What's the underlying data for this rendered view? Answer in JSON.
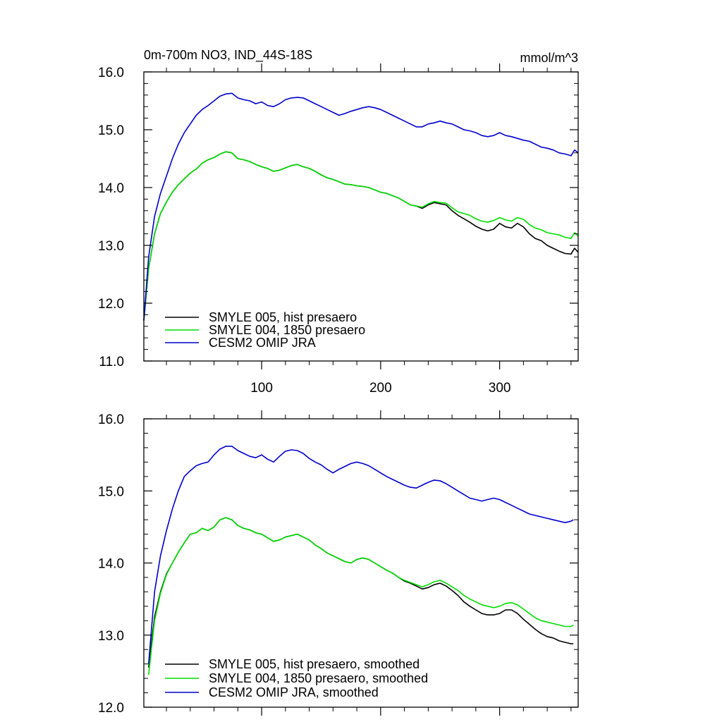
{
  "chart_data": [
    {
      "type": "line",
      "title": "0m-700m NO3, IND_44S-18S",
      "units": "mmol/m^3",
      "xlim": [
        1,
        366
      ],
      "ylim": [
        11.0,
        16.0
      ],
      "x_ticks": [
        100,
        200,
        300
      ],
      "x_tick_labels": [
        "100",
        "200",
        "300"
      ],
      "y_ticks": [
        11.0,
        12.0,
        13.0,
        14.0,
        15.0,
        16.0
      ],
      "y_tick_labels": [
        "11.0",
        "12.0",
        "13.0",
        "14.0",
        "15.0",
        "16.0"
      ],
      "legend_placement": "lower-left",
      "series": [
        {
          "name": "SMYLE 005, hist presaero",
          "color": "#000000",
          "x": [
            1,
            5,
            10,
            15,
            20,
            25,
            30,
            35,
            40,
            45,
            50,
            55,
            60,
            65,
            70,
            75,
            80,
            85,
            90,
            95,
            100,
            105,
            110,
            115,
            120,
            125,
            130,
            135,
            140,
            145,
            150,
            155,
            160,
            165,
            170,
            175,
            180,
            185,
            190,
            195,
            200,
            205,
            210,
            215,
            220,
            225,
            230,
            235,
            240,
            245,
            250,
            255,
            260,
            265,
            270,
            275,
            280,
            285,
            290,
            295,
            300,
            305,
            310,
            315,
            320,
            325,
            330,
            335,
            340,
            345,
            350,
            355,
            360,
            363,
            366
          ],
          "values": [
            11.7,
            12.6,
            13.2,
            13.55,
            13.75,
            13.92,
            14.05,
            14.15,
            14.25,
            14.32,
            14.42,
            14.48,
            14.52,
            14.58,
            14.62,
            14.6,
            14.5,
            14.48,
            14.45,
            14.4,
            14.36,
            14.33,
            14.28,
            14.3,
            14.34,
            14.38,
            14.4,
            14.36,
            14.33,
            14.28,
            14.22,
            14.17,
            14.14,
            14.1,
            14.06,
            14.05,
            14.03,
            14.02,
            14.0,
            13.96,
            13.92,
            13.9,
            13.86,
            13.82,
            13.76,
            13.7,
            13.68,
            13.64,
            13.7,
            13.74,
            13.72,
            13.7,
            13.6,
            13.52,
            13.46,
            13.4,
            13.33,
            13.28,
            13.25,
            13.28,
            13.38,
            13.32,
            13.3,
            13.38,
            13.32,
            13.2,
            13.12,
            13.08,
            13.0,
            12.95,
            12.9,
            12.86,
            12.85,
            12.95,
            12.88
          ]
        },
        {
          "name": "SMYLE 004, 1850 presaero",
          "color": "#00dd00",
          "x": [
            1,
            5,
            10,
            15,
            20,
            25,
            30,
            35,
            40,
            45,
            50,
            55,
            60,
            65,
            70,
            75,
            80,
            85,
            90,
            95,
            100,
            105,
            110,
            115,
            120,
            125,
            130,
            135,
            140,
            145,
            150,
            155,
            160,
            165,
            170,
            175,
            180,
            185,
            190,
            195,
            200,
            205,
            210,
            215,
            220,
            225,
            230,
            235,
            240,
            245,
            250,
            255,
            260,
            265,
            270,
            275,
            280,
            285,
            290,
            295,
            300,
            305,
            310,
            315,
            320,
            325,
            330,
            335,
            340,
            345,
            350,
            355,
            360,
            363,
            366
          ],
          "values": [
            11.7,
            12.6,
            13.2,
            13.55,
            13.75,
            13.92,
            14.05,
            14.15,
            14.25,
            14.32,
            14.42,
            14.48,
            14.52,
            14.58,
            14.62,
            14.6,
            14.5,
            14.48,
            14.45,
            14.4,
            14.36,
            14.33,
            14.28,
            14.3,
            14.34,
            14.38,
            14.4,
            14.36,
            14.33,
            14.28,
            14.22,
            14.17,
            14.14,
            14.1,
            14.06,
            14.05,
            14.03,
            14.02,
            14.0,
            13.96,
            13.92,
            13.9,
            13.86,
            13.82,
            13.76,
            13.7,
            13.68,
            13.66,
            13.72,
            13.76,
            13.74,
            13.73,
            13.65,
            13.58,
            13.55,
            13.52,
            13.46,
            13.42,
            13.4,
            13.43,
            13.48,
            13.44,
            13.42,
            13.48,
            13.45,
            13.36,
            13.3,
            13.27,
            13.22,
            13.2,
            13.18,
            13.14,
            13.12,
            13.22,
            13.16
          ]
        },
        {
          "name": "CESM2 OMIP JRA",
          "color": "#0000cc",
          "x": [
            1,
            5,
            10,
            15,
            20,
            25,
            30,
            35,
            40,
            45,
            50,
            55,
            60,
            65,
            70,
            75,
            80,
            85,
            90,
            95,
            100,
            105,
            110,
            115,
            120,
            125,
            130,
            135,
            140,
            145,
            150,
            155,
            160,
            165,
            170,
            175,
            180,
            185,
            190,
            195,
            200,
            205,
            210,
            215,
            220,
            225,
            230,
            235,
            240,
            245,
            250,
            255,
            260,
            265,
            270,
            275,
            280,
            285,
            290,
            295,
            300,
            305,
            310,
            315,
            320,
            325,
            330,
            335,
            340,
            345,
            350,
            355,
            360,
            363,
            366
          ],
          "values": [
            11.7,
            12.8,
            13.5,
            13.9,
            14.2,
            14.5,
            14.75,
            14.95,
            15.1,
            15.25,
            15.35,
            15.42,
            15.5,
            15.58,
            15.62,
            15.63,
            15.55,
            15.52,
            15.5,
            15.45,
            15.48,
            15.42,
            15.4,
            15.45,
            15.52,
            15.55,
            15.56,
            15.55,
            15.5,
            15.45,
            15.4,
            15.35,
            15.3,
            15.25,
            15.28,
            15.32,
            15.35,
            15.38,
            15.4,
            15.38,
            15.35,
            15.3,
            15.25,
            15.2,
            15.15,
            15.1,
            15.05,
            15.05,
            15.1,
            15.12,
            15.15,
            15.12,
            15.1,
            15.05,
            15.0,
            14.98,
            14.95,
            14.9,
            14.88,
            14.9,
            14.95,
            14.9,
            14.88,
            14.85,
            14.82,
            14.8,
            14.75,
            14.7,
            14.68,
            14.65,
            14.6,
            14.58,
            14.55,
            14.65,
            14.6
          ]
        }
      ]
    },
    {
      "type": "line",
      "title": "",
      "xlim": [
        1,
        366
      ],
      "ylim": [
        12.0,
        16.0
      ],
      "x_ticks": [
        100,
        200,
        300
      ],
      "x_tick_labels": [
        "",
        "",
        ""
      ],
      "y_ticks": [
        12.0,
        13.0,
        14.0,
        15.0,
        16.0
      ],
      "y_tick_labels": [
        "12.0",
        "13.0",
        "14.0",
        "15.0",
        "16.0"
      ],
      "legend_placement": "lower-left",
      "series": [
        {
          "name": "SMYLE 005, hist presaero, smoothed",
          "color": "#000000",
          "x": [
            5,
            10,
            15,
            20,
            25,
            30,
            35,
            40,
            45,
            50,
            55,
            60,
            65,
            70,
            75,
            80,
            85,
            90,
            95,
            100,
            105,
            110,
            115,
            120,
            125,
            130,
            135,
            140,
            145,
            150,
            155,
            160,
            165,
            170,
            175,
            180,
            185,
            190,
            195,
            200,
            205,
            210,
            215,
            220,
            225,
            230,
            235,
            240,
            245,
            250,
            255,
            260,
            265,
            270,
            275,
            280,
            285,
            290,
            295,
            300,
            305,
            310,
            315,
            320,
            325,
            330,
            335,
            340,
            345,
            350,
            355,
            360,
            362
          ],
          "values": [
            12.55,
            13.25,
            13.6,
            13.85,
            14.0,
            14.15,
            14.28,
            14.4,
            14.42,
            14.48,
            14.45,
            14.5,
            14.6,
            14.63,
            14.6,
            14.52,
            14.48,
            14.46,
            14.42,
            14.4,
            14.35,
            14.3,
            14.32,
            14.36,
            14.38,
            14.4,
            14.36,
            14.32,
            14.25,
            14.2,
            14.14,
            14.1,
            14.06,
            14.02,
            14.0,
            14.05,
            14.07,
            14.05,
            14.0,
            13.95,
            13.9,
            13.86,
            13.8,
            13.75,
            13.72,
            13.68,
            13.64,
            13.66,
            13.7,
            13.72,
            13.68,
            13.62,
            13.55,
            13.46,
            13.4,
            13.35,
            13.3,
            13.28,
            13.28,
            13.3,
            13.35,
            13.35,
            13.3,
            13.22,
            13.15,
            13.08,
            13.02,
            12.98,
            12.96,
            12.92,
            12.9,
            12.88,
            12.88
          ]
        },
        {
          "name": "SMYLE 004, 1850 presaero, smoothed",
          "color": "#00dd00",
          "x": [
            5,
            10,
            15,
            20,
            25,
            30,
            35,
            40,
            45,
            50,
            55,
            60,
            65,
            70,
            75,
            80,
            85,
            90,
            95,
            100,
            105,
            110,
            115,
            120,
            125,
            130,
            135,
            140,
            145,
            150,
            155,
            160,
            165,
            170,
            175,
            180,
            185,
            190,
            195,
            200,
            205,
            210,
            215,
            220,
            225,
            230,
            235,
            240,
            245,
            250,
            255,
            260,
            265,
            270,
            275,
            280,
            285,
            290,
            295,
            300,
            305,
            310,
            315,
            320,
            325,
            330,
            335,
            340,
            345,
            350,
            355,
            360,
            362
          ],
          "values": [
            12.45,
            13.2,
            13.58,
            13.84,
            14.0,
            14.15,
            14.28,
            14.4,
            14.42,
            14.48,
            14.45,
            14.5,
            14.6,
            14.63,
            14.6,
            14.52,
            14.48,
            14.46,
            14.42,
            14.4,
            14.35,
            14.3,
            14.32,
            14.36,
            14.38,
            14.4,
            14.36,
            14.32,
            14.25,
            14.2,
            14.14,
            14.1,
            14.06,
            14.02,
            14.0,
            14.05,
            14.07,
            14.05,
            14.0,
            13.95,
            13.9,
            13.86,
            13.8,
            13.76,
            13.73,
            13.7,
            13.67,
            13.7,
            13.74,
            13.76,
            13.72,
            13.67,
            13.62,
            13.55,
            13.5,
            13.46,
            13.42,
            13.4,
            13.38,
            13.4,
            13.44,
            13.45,
            13.42,
            13.36,
            13.3,
            13.24,
            13.2,
            13.18,
            13.16,
            13.14,
            13.12,
            13.12,
            13.14
          ]
        },
        {
          "name": "CESM2 OMIP JRA, smoothed",
          "color": "#0000cc",
          "x": [
            5,
            10,
            15,
            20,
            25,
            30,
            35,
            40,
            45,
            50,
            55,
            60,
            65,
            70,
            75,
            80,
            85,
            90,
            95,
            100,
            105,
            110,
            115,
            120,
            125,
            130,
            135,
            140,
            145,
            150,
            155,
            160,
            165,
            170,
            175,
            180,
            185,
            190,
            195,
            200,
            205,
            210,
            215,
            220,
            225,
            230,
            235,
            240,
            245,
            250,
            255,
            260,
            265,
            270,
            275,
            280,
            285,
            290,
            295,
            300,
            305,
            310,
            315,
            320,
            325,
            330,
            335,
            340,
            345,
            350,
            355,
            360,
            362
          ],
          "values": [
            12.6,
            13.6,
            14.1,
            14.45,
            14.75,
            15.0,
            15.2,
            15.28,
            15.35,
            15.38,
            15.4,
            15.5,
            15.58,
            15.62,
            15.62,
            15.56,
            15.52,
            15.48,
            15.46,
            15.5,
            15.44,
            15.4,
            15.48,
            15.55,
            15.57,
            15.56,
            15.52,
            15.45,
            15.4,
            15.36,
            15.3,
            15.25,
            15.3,
            15.34,
            15.38,
            15.4,
            15.38,
            15.35,
            15.3,
            15.25,
            15.2,
            15.16,
            15.12,
            15.08,
            15.05,
            15.04,
            15.08,
            15.12,
            15.15,
            15.14,
            15.1,
            15.05,
            15.0,
            14.95,
            14.9,
            14.88,
            14.86,
            14.88,
            14.9,
            14.88,
            14.84,
            14.8,
            14.76,
            14.72,
            14.68,
            14.66,
            14.64,
            14.62,
            14.6,
            14.58,
            14.56,
            14.58,
            14.6
          ]
        }
      ]
    }
  ]
}
